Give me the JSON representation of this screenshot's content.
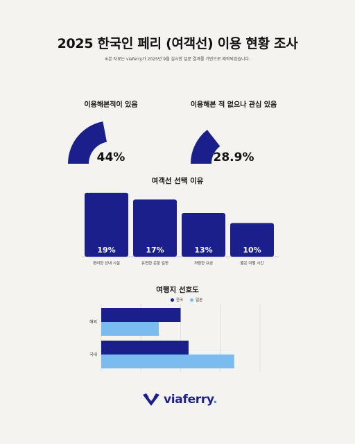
{
  "page": {
    "title": "2025 한국인 페리 (여객선) 이용 현황 조사",
    "subtitle": "※본 자료는 viaferry가 2025년 9월 실시한 설문 결과를 기반으로 제작되었습니다."
  },
  "colors": {
    "navy": "#1a1f8c",
    "light_blue": "#7bbcf0",
    "background": "#f4f3ef"
  },
  "logo": {
    "name": "viaferry",
    "icon": "viaferry-logo-icon"
  },
  "chart_data": [
    {
      "type": "gauge",
      "title": "이용해본적이 있음",
      "value": 44,
      "max": 100,
      "value_label": "44%"
    },
    {
      "type": "gauge",
      "title": "이용해본 적 없으나 관심 있음",
      "value": 28.9,
      "max": 100,
      "value_label": "28.9%"
    },
    {
      "type": "bar",
      "title": "여객선 선택 이유",
      "categories": [
        "편리한 선내 시설",
        "유연한 운항 일정",
        "저렴한 요금",
        "짧은 여행 시간"
      ],
      "values": [
        19,
        17,
        13,
        10
      ],
      "value_labels": [
        "19%",
        "17%",
        "13%",
        "10%"
      ],
      "ylim": [
        0,
        20
      ]
    },
    {
      "type": "bar",
      "orientation": "horizontal",
      "title": "여행지 선호도",
      "categories": [
        "해외",
        "국내"
      ],
      "series": [
        {
          "name": "한국",
          "values": [
            40,
            44
          ]
        },
        {
          "name": "일본",
          "values": [
            29,
            67
          ]
        }
      ],
      "xlim": [
        0,
        80
      ],
      "grid": true,
      "legend": "top"
    }
  ]
}
